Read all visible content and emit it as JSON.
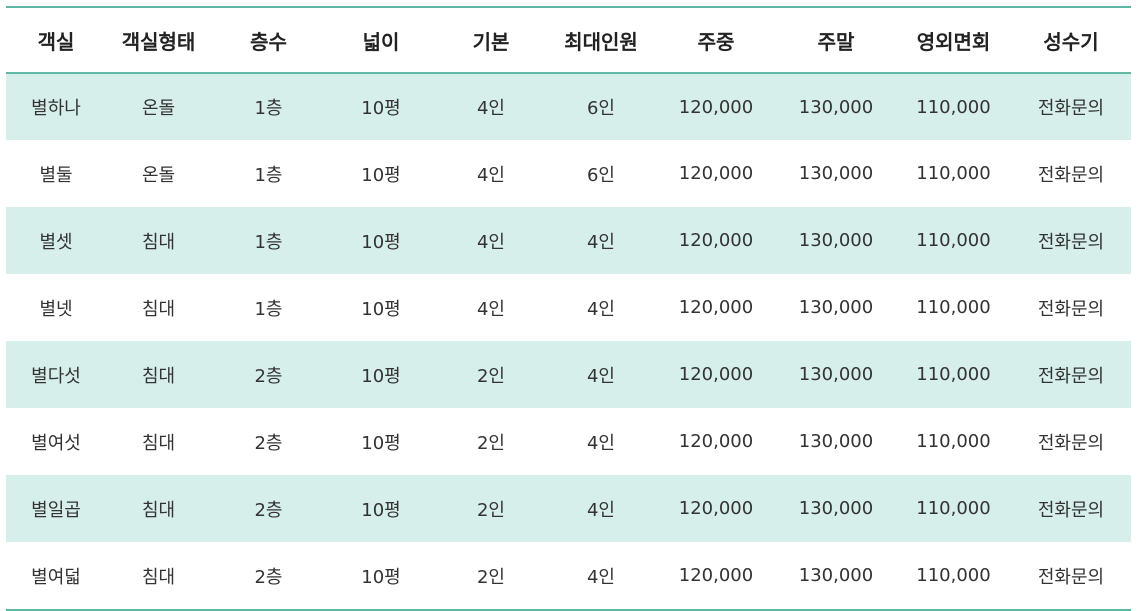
{
  "table": {
    "headers": [
      "객실",
      "객실형태",
      "층수",
      "넓이",
      "기본",
      "최대인원",
      "주중",
      "주말",
      "영외면회",
      "성수기"
    ],
    "rows": [
      [
        "별하나",
        "온돌",
        "1층",
        "10평",
        "4인",
        "6인",
        "120,000",
        "130,000",
        "110,000",
        "전화문의"
      ],
      [
        "별둘",
        "온돌",
        "1층",
        "10평",
        "4인",
        "6인",
        "120,000",
        "130,000",
        "110,000",
        "전화문의"
      ],
      [
        "별셋",
        "침대",
        "1층",
        "10평",
        "4인",
        "4인",
        "120,000",
        "130,000",
        "110,000",
        "전화문의"
      ],
      [
        "별넷",
        "침대",
        "1층",
        "10평",
        "4인",
        "4인",
        "120,000",
        "130,000",
        "110,000",
        "전화문의"
      ],
      [
        "별다섯",
        "침대",
        "2층",
        "10평",
        "2인",
        "4인",
        "120,000",
        "130,000",
        "110,000",
        "전화문의"
      ],
      [
        "별여섯",
        "침대",
        "2층",
        "10평",
        "2인",
        "4인",
        "120,000",
        "130,000",
        "110,000",
        "전화문의"
      ],
      [
        "별일곱",
        "침대",
        "2층",
        "10평",
        "2인",
        "4인",
        "120,000",
        "130,000",
        "110,000",
        "전화문의"
      ],
      [
        "별여덟",
        "침대",
        "2층",
        "10평",
        "2인",
        "4인",
        "120,000",
        "130,000",
        "110,000",
        "전화문의"
      ]
    ]
  },
  "colors": {
    "accent_line": "#5fb8a6",
    "stripe": "#d7efeb"
  }
}
